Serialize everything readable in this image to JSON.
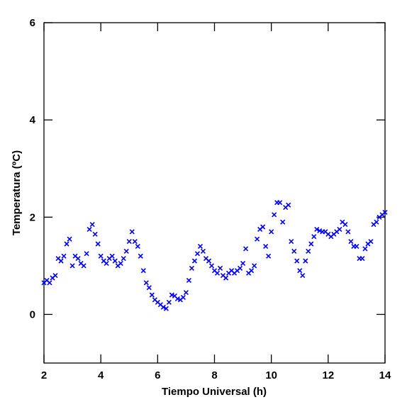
{
  "chart_data": {
    "type": "scatter",
    "xlabel": "Tiempo Universal (h)",
    "ylabel": "Temperatura (ºC)",
    "color": "#0000ff",
    "x": [
      2.0,
      2.1,
      2.2,
      2.3,
      2.4,
      2.5,
      2.6,
      2.7,
      2.8,
      2.9,
      3.0,
      3.1,
      3.2,
      3.3,
      3.4,
      3.5,
      3.6,
      3.7,
      3.8,
      3.9,
      4.0,
      4.1,
      4.2,
      4.3,
      4.4,
      4.5,
      4.6,
      4.7,
      4.8,
      4.9,
      5.0,
      5.1,
      5.2,
      5.3,
      5.4,
      5.5,
      5.6,
      5.7,
      5.8,
      5.9,
      6.0,
      6.1,
      6.2,
      6.3,
      6.4,
      6.5,
      6.6,
      6.7,
      6.8,
      6.9,
      7.0,
      7.1,
      7.2,
      7.3,
      7.4,
      7.5,
      7.6,
      7.7,
      7.8,
      7.9,
      8.0,
      8.1,
      8.2,
      8.3,
      8.4,
      8.5,
      8.6,
      8.7,
      8.8,
      8.9,
      9.0,
      9.1,
      9.2,
      9.3,
      9.4,
      9.5,
      9.6,
      9.7,
      9.8,
      9.9,
      10.0,
      10.1,
      10.2,
      10.3,
      10.4,
      10.5,
      10.6,
      10.7,
      10.8,
      10.9,
      11.0,
      11.1,
      11.2,
      11.3,
      11.4,
      11.5,
      11.6,
      11.7,
      11.8,
      11.9,
      12.0,
      12.1,
      12.2,
      12.3,
      12.4,
      12.5,
      12.6,
      12.7,
      12.8,
      12.9,
      13.0,
      13.1,
      13.2,
      13.3,
      13.4,
      13.5,
      13.6,
      13.7,
      13.8,
      13.9,
      14.0
    ],
    "values": [
      0.65,
      0.7,
      0.65,
      0.75,
      0.8,
      1.15,
      1.1,
      1.2,
      1.45,
      1.55,
      1.0,
      1.2,
      1.15,
      1.05,
      1.0,
      1.25,
      1.75,
      1.85,
      1.65,
      1.45,
      1.2,
      1.1,
      1.05,
      1.15,
      1.2,
      1.1,
      1.0,
      1.05,
      1.15,
      1.3,
      1.5,
      1.7,
      1.5,
      1.4,
      1.2,
      0.9,
      0.65,
      0.55,
      0.4,
      0.3,
      0.25,
      0.2,
      0.15,
      0.12,
      0.25,
      0.4,
      0.38,
      0.32,
      0.3,
      0.35,
      0.45,
      0.7,
      0.95,
      1.1,
      1.25,
      1.4,
      1.3,
      1.15,
      1.1,
      1.0,
      0.9,
      0.85,
      0.95,
      0.8,
      0.75,
      0.85,
      0.9,
      0.85,
      0.9,
      0.95,
      1.05,
      1.35,
      0.85,
      0.9,
      1.0,
      1.55,
      1.75,
      1.8,
      1.4,
      1.2,
      1.7,
      2.05,
      2.3,
      2.3,
      1.9,
      2.2,
      2.25,
      1.5,
      1.3,
      1.1,
      0.9,
      0.8,
      1.1,
      1.3,
      1.45,
      1.6,
      1.75,
      1.72,
      1.7,
      1.7,
      1.65,
      1.6,
      1.65,
      1.7,
      1.75,
      1.9,
      1.85,
      1.7,
      1.5,
      1.4,
      1.4,
      1.15,
      1.15,
      1.35,
      1.45,
      1.5,
      1.85,
      1.9,
      2.0,
      2.05,
      2.1
    ],
    "xlim": [
      2,
      14
    ],
    "xticks": [
      2,
      4,
      6,
      8,
      10,
      12,
      14
    ],
    "ylim": [
      -1,
      6
    ],
    "yticks": [
      0,
      2,
      4,
      6
    ]
  }
}
